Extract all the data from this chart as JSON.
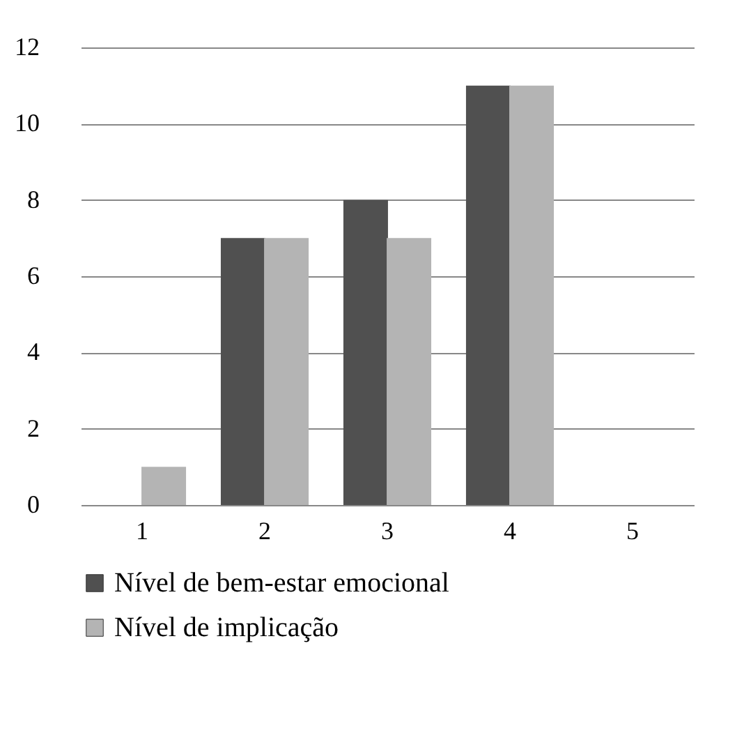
{
  "chart_data": {
    "type": "bar",
    "categories": [
      "1",
      "2",
      "3",
      "4",
      "5"
    ],
    "series": [
      {
        "name": "Nível de bem-estar emocional",
        "color": "#505050",
        "values": [
          0,
          7,
          8,
          11,
          0
        ]
      },
      {
        "name": "Nível de implicação",
        "color": "#b4b4b4",
        "values": [
          1,
          7,
          7,
          11,
          0
        ]
      }
    ],
    "ylim": [
      0,
      12
    ],
    "yticks": [
      0,
      2,
      4,
      6,
      8,
      10,
      12
    ],
    "grid": "y",
    "legend": "bottom"
  }
}
